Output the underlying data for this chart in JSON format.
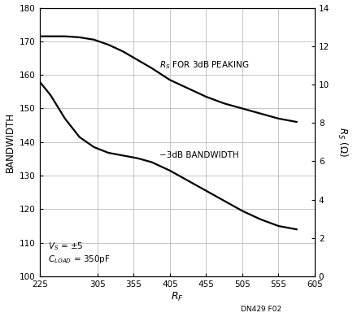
{
  "xlabel": "$R_F$",
  "ylabel_left": "BANDWIDTH",
  "ylabel_right": "$R_S$ (Ω)",
  "xlim": [
    225,
    605
  ],
  "ylim_left": [
    100,
    180
  ],
  "ylim_right": [
    0,
    14
  ],
  "xticks": [
    225,
    305,
    355,
    405,
    455,
    505,
    555,
    605
  ],
  "yticks_left": [
    100,
    110,
    120,
    130,
    140,
    150,
    160,
    170,
    180
  ],
  "yticks_right": [
    0,
    2,
    4,
    6,
    8,
    10,
    12,
    14
  ],
  "rs_peaking_x": [
    225,
    240,
    260,
    280,
    300,
    320,
    340,
    360,
    380,
    405,
    430,
    455,
    480,
    505,
    530,
    555,
    580
  ],
  "rs_peaking_y": [
    171.5,
    171.5,
    171.5,
    171.2,
    170.5,
    169.0,
    167.0,
    164.5,
    162.0,
    158.5,
    156.0,
    153.5,
    151.5,
    150.0,
    148.5,
    147.0,
    146.0
  ],
  "bw_3db_x": [
    225,
    240,
    260,
    280,
    300,
    320,
    340,
    360,
    380,
    405,
    430,
    455,
    480,
    505,
    530,
    555,
    580
  ],
  "bw_3db_y": [
    158.0,
    154.0,
    147.0,
    141.5,
    138.5,
    136.8,
    136.0,
    135.2,
    134.0,
    131.5,
    128.5,
    125.5,
    122.5,
    119.5,
    117.0,
    115.0,
    114.0
  ],
  "watermark": "DN429 F02",
  "line_color": "#000000",
  "grid_color": "#bbbbbb",
  "bg_color": "#ffffff",
  "text_rs_label": "R",
  "text_rs_sub": "S",
  "text_rs_rest": " FOR 3dB PEAKING",
  "text_bw": "−3dB BANDWIDTH",
  "text_vs": "V",
  "text_vs_sub": "S",
  "text_vs_rest": " = ±5",
  "text_cload": "C",
  "text_cload_sub": "LOAD",
  "text_cload_rest": " = 350pF",
  "ann_rs_x": 390,
  "ann_rs_y": 163,
  "ann_bw_x": 390,
  "ann_bw_y": 136,
  "ann_vs_x": 237,
  "ann_vs_y1": 109,
  "ann_vs_y2": 105
}
